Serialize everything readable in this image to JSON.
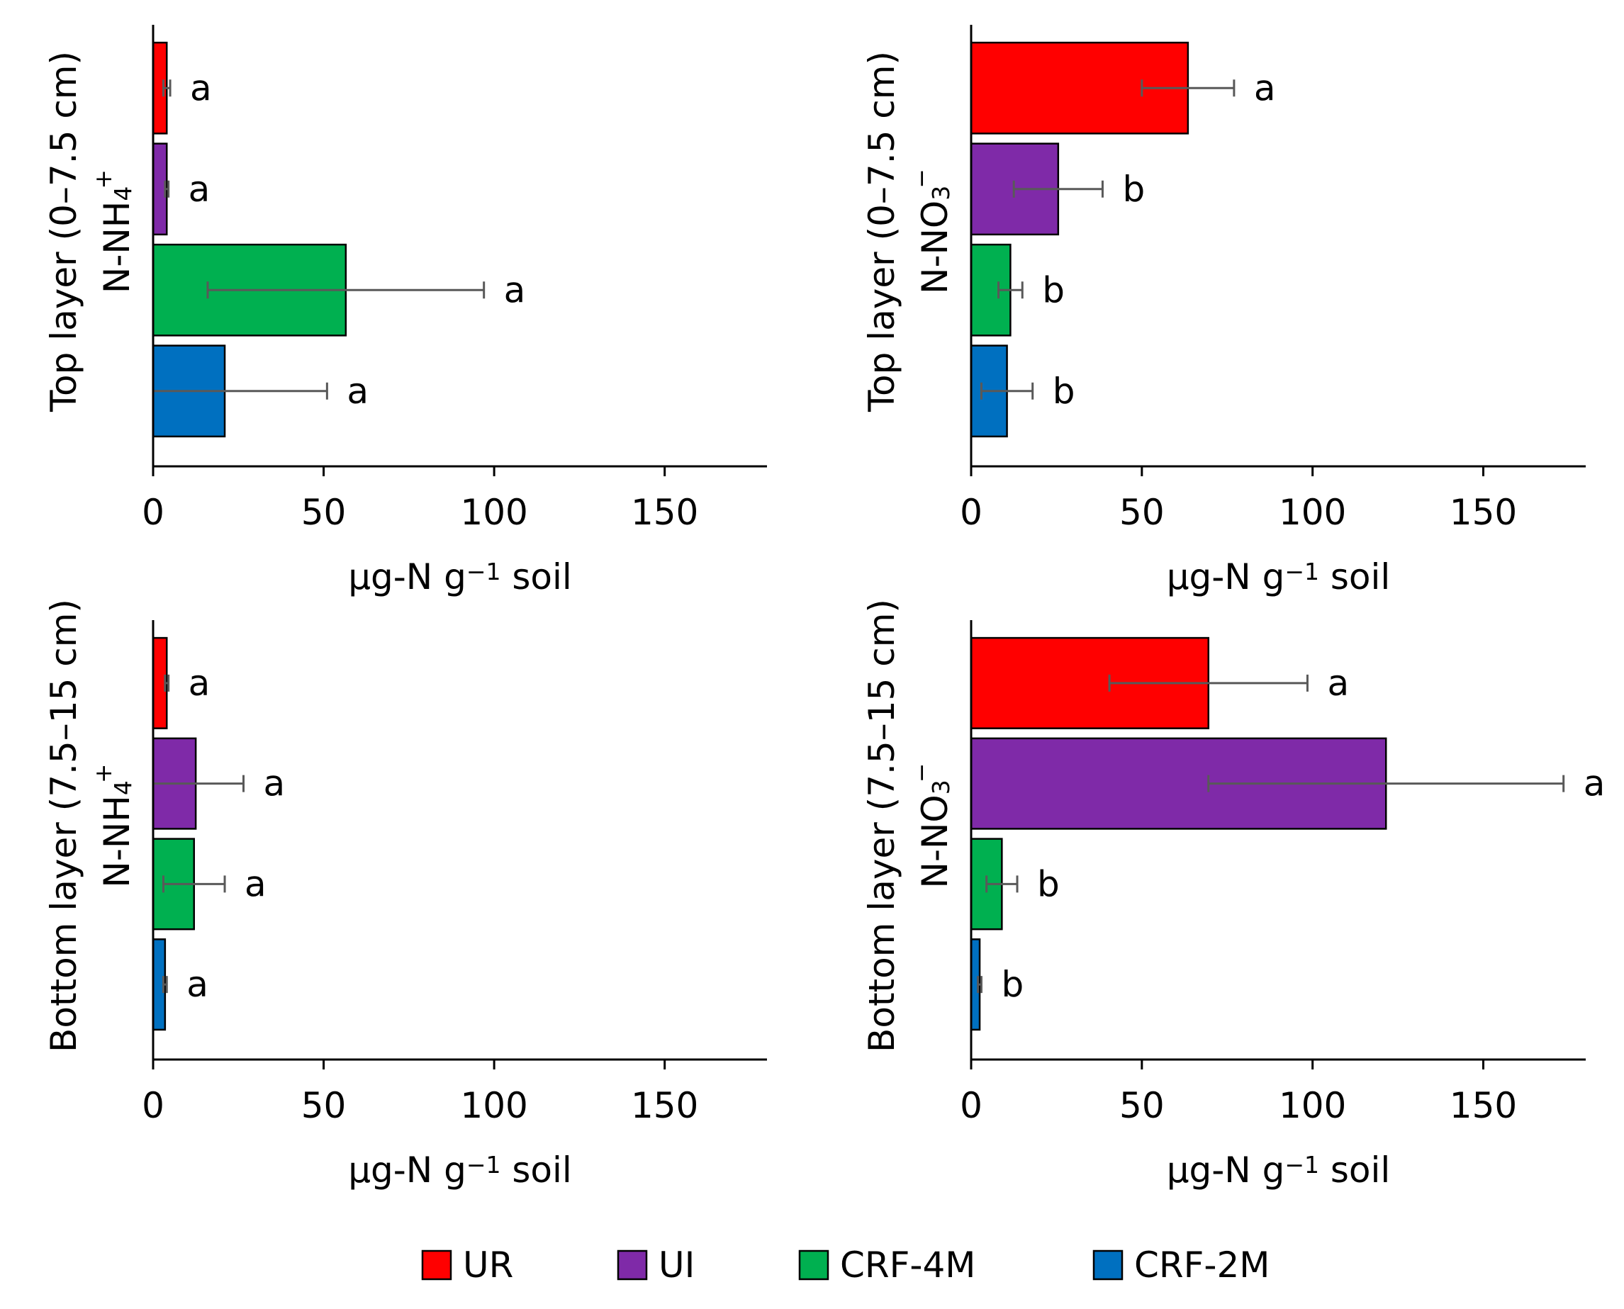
{
  "legend": {
    "items": [
      {
        "label": "UR",
        "color": "#ff0000"
      },
      {
        "label": "UI",
        "color": "#7f2aa8"
      },
      {
        "label": "CRF-4M",
        "color": "#00b050"
      },
      {
        "label": "CRF-2M",
        "color": "#0070c0"
      }
    ]
  },
  "chart_data": [
    {
      "type": "bar",
      "orientation": "horizontal",
      "ylabel_line1": "Top layer (0–7.5 cm)",
      "ylabel_line2_main": "N-NH",
      "ylabel_line2_sub": "4",
      "ylabel_line2_sup": "+",
      "xlabel_main": "µg-N g",
      "xlabel_sup": "−1",
      "xlabel_tail": " soil",
      "xlim": [
        0,
        180
      ],
      "xticks": [
        "0",
        "50",
        "100",
        "150"
      ],
      "categories": [
        "UR",
        "UI",
        "CRF-4M",
        "CRF-2M"
      ],
      "values": [
        4,
        4,
        56.5,
        21
      ],
      "errors": [
        1,
        0.5,
        40.5,
        30
      ],
      "labels": [
        "a",
        "a",
        "a",
        "a"
      ]
    },
    {
      "type": "bar",
      "orientation": "horizontal",
      "ylabel_line1": "Top layer (0–7.5 cm)",
      "ylabel_line2_main": "N-NO",
      "ylabel_line2_sub": "3",
      "ylabel_line2_sup": "−",
      "xlabel_main": "µg-N g",
      "xlabel_sup": "−1",
      "xlabel_tail": " soil",
      "xlim": [
        0,
        180
      ],
      "xticks": [
        "0",
        "50",
        "100",
        "150"
      ],
      "categories": [
        "UR",
        "UI",
        "CRF-4M",
        "CRF-2M"
      ],
      "values": [
        63.5,
        25.5,
        11.5,
        10.5
      ],
      "errors": [
        13.5,
        13,
        3.5,
        7.5
      ],
      "labels": [
        "a",
        "b",
        "b",
        "b"
      ]
    },
    {
      "type": "bar",
      "orientation": "horizontal",
      "ylabel_line1": "Bottom layer (7.5–15 cm)",
      "ylabel_line2_main": "N-NH",
      "ylabel_line2_sub": "4",
      "ylabel_line2_sup": "+",
      "xlabel_main": "µg-N g",
      "xlabel_sup": "−1",
      "xlabel_tail": " soil",
      "xlim": [
        0,
        180
      ],
      "xticks": [
        "0",
        "50",
        "100",
        "150"
      ],
      "categories": [
        "UR",
        "UI",
        "CRF-4M",
        "CRF-2M"
      ],
      "values": [
        4,
        12.5,
        12,
        3.5
      ],
      "errors": [
        0.5,
        14,
        9,
        0.5
      ],
      "labels": [
        "a",
        "a",
        "a",
        "a"
      ]
    },
    {
      "type": "bar",
      "orientation": "horizontal",
      "ylabel_line1": "Bottom layer (7.5–15 cm)",
      "ylabel_line2_main": "N-NO",
      "ylabel_line2_sub": "3",
      "ylabel_line2_sup": "−",
      "xlabel_main": "µg-N g",
      "xlabel_sup": "−1",
      "xlabel_tail": " soil",
      "xlim": [
        0,
        180
      ],
      "xticks": [
        "0",
        "50",
        "100",
        "150"
      ],
      "categories": [
        "UR",
        "UI",
        "CRF-4M",
        "CRF-2M"
      ],
      "values": [
        69.5,
        121.5,
        9,
        2.5
      ],
      "errors": [
        29,
        52,
        4.5,
        0.5
      ],
      "labels": [
        "a",
        "a",
        "b",
        "b"
      ]
    }
  ]
}
